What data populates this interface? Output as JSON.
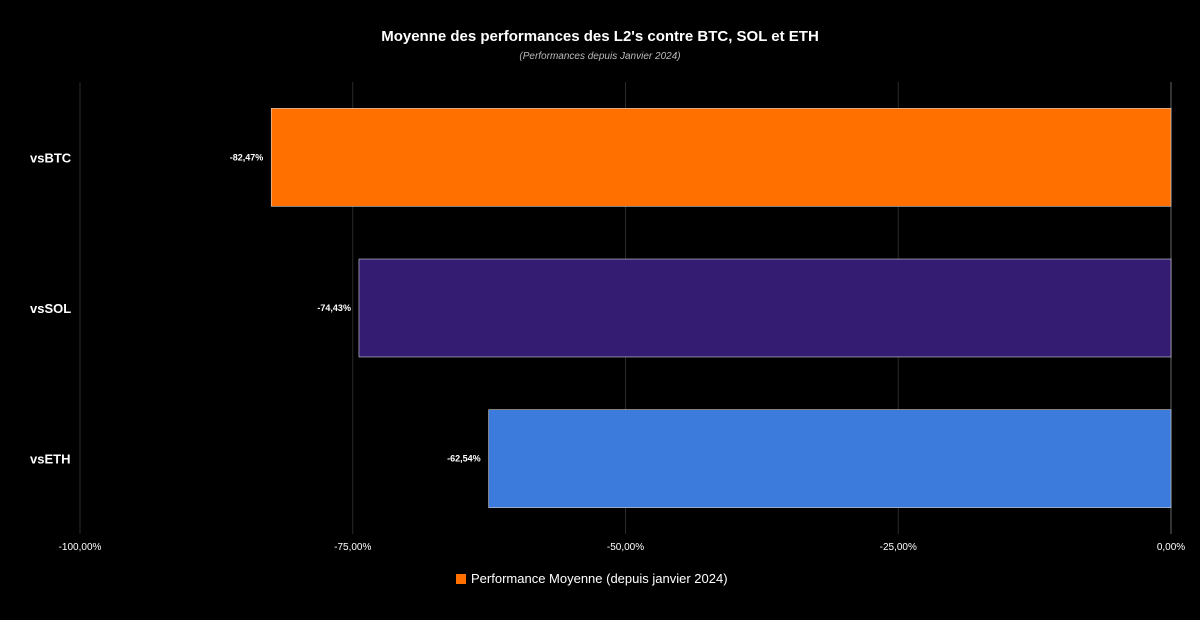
{
  "chart_data": {
    "type": "bar",
    "orientation": "horizontal",
    "title": "Moyenne des performances des L2's contre BTC, SOL et ETH",
    "subtitle": "(Performances depuis Janvier 2024)",
    "categories": [
      "vsBTC",
      "vsSOL",
      "vsETH"
    ],
    "values": [
      -82.47,
      -74.43,
      -62.54
    ],
    "value_labels": [
      "-82,47%",
      "-74,43%",
      "-62,54%"
    ],
    "bar_colors": [
      "#ff7000",
      "#341c72",
      "#3c7bdb"
    ],
    "xlim": [
      -100,
      0
    ],
    "x_ticks": [
      -100,
      -75,
      -50,
      -25,
      0
    ],
    "x_tick_labels": [
      "-100,00%",
      "-75,00%",
      "-50,00%",
      "-25,00%",
      "0,00%"
    ],
    "grid": true,
    "series": [
      {
        "name": "Performance Moyenne (depuis janvier 2024)",
        "values": [
          -82.47,
          -74.43,
          -62.54
        ],
        "color": "#ff7000"
      }
    ],
    "legend_position": "bottom-center"
  }
}
